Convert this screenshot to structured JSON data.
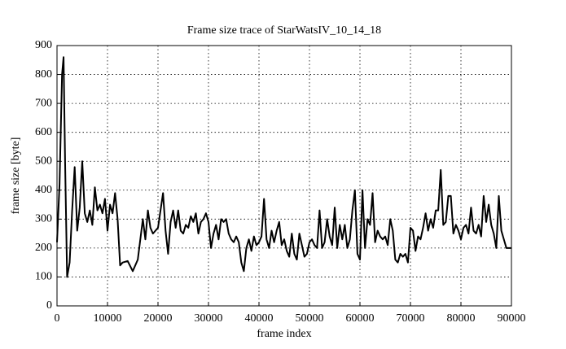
{
  "chart_data": {
    "type": "line",
    "title": "Frame size trace of StarWatsIV_10_14_18",
    "xlabel": "frame index",
    "ylabel": "frame size [byte]",
    "x": [
      0,
      500,
      1000,
      1300,
      1600,
      2000,
      2500,
      3000,
      3500,
      4000,
      4500,
      5000,
      5500,
      6000,
      6500,
      7000,
      7500,
      8000,
      8500,
      9000,
      9500,
      10000,
      10500,
      11000,
      11500,
      12000,
      12500,
      13000,
      14000,
      15000,
      16000,
      17000,
      17500,
      18000,
      18500,
      19000,
      20000,
      20500,
      21000,
      21500,
      22000,
      22500,
      23000,
      23500,
      24000,
      24500,
      25000,
      25500,
      26000,
      26500,
      27000,
      27500,
      28000,
      28500,
      29000,
      29500,
      30000,
      30500,
      31000,
      31500,
      32000,
      32500,
      33000,
      33500,
      34000,
      34500,
      35000,
      35500,
      36000,
      36500,
      37000,
      37500,
      38000,
      38500,
      39000,
      39500,
      40000,
      40500,
      41000,
      41500,
      42000,
      42500,
      43000,
      43500,
      44000,
      44500,
      45000,
      45500,
      46000,
      46500,
      47000,
      47500,
      48000,
      48500,
      49000,
      49500,
      50000,
      50500,
      51000,
      51500,
      52000,
      52500,
      53000,
      53500,
      54000,
      54500,
      55000,
      55500,
      56000,
      56500,
      57000,
      57500,
      58000,
      58500,
      59000,
      59500,
      60000,
      60500,
      61000,
      61500,
      62000,
      62500,
      63000,
      63500,
      64000,
      64500,
      65000,
      65500,
      66000,
      66500,
      67000,
      67500,
      68000,
      68500,
      69000,
      69500,
      70000,
      70500,
      71000,
      71500,
      72000,
      72500,
      73000,
      73500,
      74000,
      74500,
      75000,
      75500,
      76000,
      76500,
      77000,
      77500,
      78000,
      78500,
      79000,
      79500,
      80000,
      80500,
      81000,
      81500,
      82000,
      82500,
      83000,
      83500,
      84000,
      84500,
      85000,
      85500,
      86000,
      86500,
      87000,
      87500,
      88000,
      88500,
      89000,
      89500,
      90000
    ],
    "series": [
      {
        "name": "frame size",
        "color": "#000000",
        "values": [
          220,
          420,
          800,
          860,
          500,
          100,
          150,
          330,
          480,
          260,
          340,
          500,
          320,
          290,
          330,
          280,
          410,
          330,
          350,
          320,
          370,
          260,
          350,
          320,
          390,
          300,
          140,
          150,
          155,
          120,
          160,
          300,
          230,
          330,
          270,
          250,
          270,
          330,
          390,
          260,
          180,
          290,
          330,
          270,
          330,
          260,
          250,
          280,
          270,
          310,
          290,
          320,
          250,
          290,
          300,
          320,
          290,
          200,
          250,
          280,
          230,
          300,
          290,
          300,
          250,
          230,
          220,
          240,
          220,
          150,
          120,
          200,
          230,
          190,
          240,
          210,
          220,
          240,
          370,
          230,
          200,
          260,
          220,
          260,
          290,
          210,
          230,
          190,
          170,
          250,
          180,
          160,
          250,
          210,
          170,
          180,
          220,
          230,
          210,
          200,
          330,
          200,
          220,
          300,
          240,
          210,
          340,
          200,
          280,
          230,
          280,
          200,
          230,
          330,
          400,
          180,
          160,
          400,
          200,
          300,
          280,
          390,
          220,
          260,
          240,
          230,
          240,
          210,
          300,
          260,
          160,
          150,
          180,
          170,
          180,
          150,
          270,
          260,
          190,
          240,
          230,
          270,
          320,
          260,
          300,
          270,
          330,
          330,
          470,
          280,
          290,
          380,
          380,
          250,
          280,
          260,
          230,
          270,
          280,
          250,
          340,
          260,
          250,
          280,
          240,
          380,
          290,
          350,
          280,
          250,
          200,
          380,
          260,
          230,
          200,
          200,
          200
        ]
      }
    ],
    "xlim": [
      0,
      90000
    ],
    "xticks": [
      0,
      10000,
      20000,
      30000,
      40000,
      50000,
      60000,
      70000,
      80000,
      90000
    ],
    "ylim": [
      0,
      900
    ],
    "yticks": [
      0,
      100,
      200,
      300,
      400,
      500,
      600,
      700,
      800,
      900
    ],
    "grid": true
  }
}
